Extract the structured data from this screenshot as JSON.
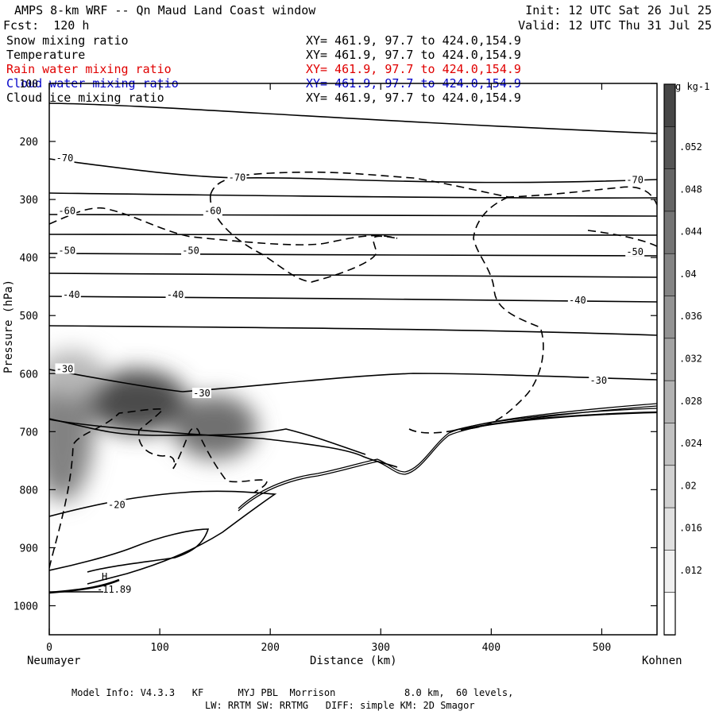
{
  "header": {
    "title": "AMPS 8-km WRF -- Qn Maud Land Coast window",
    "init": "Init: 12 UTC Sat 26 Jul 25",
    "fcst": "Fcst:  120 h",
    "valid": "Valid: 12 UTC Thu 31 Jul 25"
  },
  "fields": [
    {
      "label": "Snow mixing ratio",
      "xy": "XY= 461.9, 97.7 to 424.0,154.9",
      "color": "#000000"
    },
    {
      "label": "Temperature",
      "xy": "XY= 461.9, 97.7 to 424.0,154.9",
      "color": "#000000"
    },
    {
      "label": "Rain water mixing ratio",
      "xy": "XY= 461.9, 97.7 to 424.0,154.9",
      "color": "#e00000"
    },
    {
      "label": "Cloud water mixing ratio",
      "xy": "XY= 461.9, 97.7 to 424.0,154.9",
      "color": "#0000c8"
    },
    {
      "label": "Cloud ice mixing ratio",
      "xy": "XY= 461.9, 97.7 to 424.0,154.9",
      "color": "#000000"
    }
  ],
  "axes": {
    "ylabel": "Pressure (hPa)",
    "xlabel": "Distance (km)",
    "left_station": "Neumayer",
    "right_station": "Kohnen"
  },
  "colorbar": {
    "unit": "g kg-1",
    "ticks": [
      ".052",
      ".048",
      ".044",
      ".04",
      ".036",
      ".032",
      ".028",
      ".024",
      ".02",
      ".016",
      ".012"
    ]
  },
  "footer": {
    "line1": "Model Info: V4.3.3   KF      MYJ PBL  Morrison            8.0 km,  60 levels,",
    "line2": "LW: RRTM SW: RRTMG   DIFF: simple KM: 2D Smagor"
  },
  "annotations": {
    "high_mark": "H",
    "high_value": "-11.89"
  },
  "chart_data": {
    "type": "contour",
    "x_range": [
      0,
      550
    ],
    "y_range": [
      1050,
      100
    ],
    "xticks": [
      0,
      100,
      200,
      300,
      400,
      500
    ],
    "yticks": [
      100,
      200,
      300,
      400,
      500,
      600,
      700,
      800,
      900,
      1000
    ],
    "temperature_contour_labels": [
      {
        "text": "-70",
        "x": 14,
        "p": 229
      },
      {
        "text": "-70",
        "x": 170,
        "p": 262
      },
      {
        "text": "-70",
        "x": 530,
        "p": 266
      },
      {
        "text": "-60",
        "x": 16,
        "p": 320
      },
      {
        "text": "-60",
        "x": 148,
        "p": 320
      },
      {
        "text": "-50",
        "x": 16,
        "p": 388
      },
      {
        "text": "-50",
        "x": 128,
        "p": 388
      },
      {
        "text": "-50",
        "x": 530,
        "p": 390
      },
      {
        "text": "-40",
        "x": 20,
        "p": 464
      },
      {
        "text": "-40",
        "x": 114,
        "p": 464
      },
      {
        "text": "-40",
        "x": 478,
        "p": 474
      },
      {
        "text": "-30",
        "x": 14,
        "p": 592
      },
      {
        "text": "-30",
        "x": 138,
        "p": 634
      },
      {
        "text": "-30",
        "x": 497,
        "p": 612
      },
      {
        "text": "-20",
        "x": 61,
        "p": 826
      }
    ],
    "snow_blobs": [
      {
        "x": 80,
        "p": 648,
        "rx": 45,
        "rp": 55,
        "max": 0.05
      },
      {
        "x": 150,
        "p": 692,
        "rx": 38,
        "rp": 55,
        "max": 0.04
      },
      {
        "x": 12,
        "p": 700,
        "rx": 28,
        "rp": 120,
        "max": 0.035
      },
      {
        "x": 20,
        "p": 600,
        "rx": 30,
        "rp": 40,
        "max": 0.02
      }
    ]
  }
}
